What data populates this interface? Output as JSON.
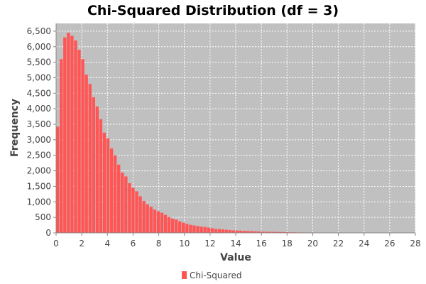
{
  "chart_data": {
    "type": "bar",
    "title": "Chi-Squared Distribution (df = 3)",
    "xlabel": "Value",
    "ylabel": "Frequency",
    "xlim": [
      0,
      28
    ],
    "ylim": [
      0,
      6750
    ],
    "x_ticks": [
      "0",
      "2",
      "4",
      "6",
      "8",
      "10",
      "12",
      "14",
      "16",
      "18",
      "20",
      "22",
      "24",
      "26",
      "28"
    ],
    "y_ticks": [
      "0",
      "500",
      "1,000",
      "1,500",
      "2,000",
      "2,500",
      "3,000",
      "3,500",
      "4,000",
      "4,500",
      "5,000",
      "5,500",
      "6,000",
      "6,500"
    ],
    "grid": true,
    "legend": "bottom-center",
    "bin_width": 0.28,
    "series": [
      {
        "name": "Chi-Squared",
        "color": "#ff5555",
        "values": [
          3420,
          5600,
          6300,
          6450,
          6350,
          6200,
          5900,
          5600,
          5100,
          4800,
          4370,
          4070,
          3660,
          3230,
          3050,
          2720,
          2500,
          2200,
          1940,
          1820,
          1600,
          1450,
          1340,
          1180,
          1030,
          920,
          840,
          750,
          700,
          650,
          580,
          510,
          460,
          430,
          370,
          330,
          290,
          260,
          240,
          220,
          200,
          190,
          170,
          150,
          130,
          120,
          110,
          100,
          90,
          80,
          75,
          70,
          65,
          60,
          55,
          50,
          45,
          40,
          38,
          35,
          32,
          30,
          27,
          25,
          22,
          20,
          18,
          17,
          15,
          14,
          13,
          12,
          11,
          10,
          9,
          8,
          7,
          7,
          6,
          6,
          5,
          5,
          4,
          4,
          4,
          3,
          3,
          3,
          3,
          2,
          2,
          2,
          2,
          2,
          2,
          1,
          1,
          1,
          1,
          1
        ]
      }
    ]
  }
}
